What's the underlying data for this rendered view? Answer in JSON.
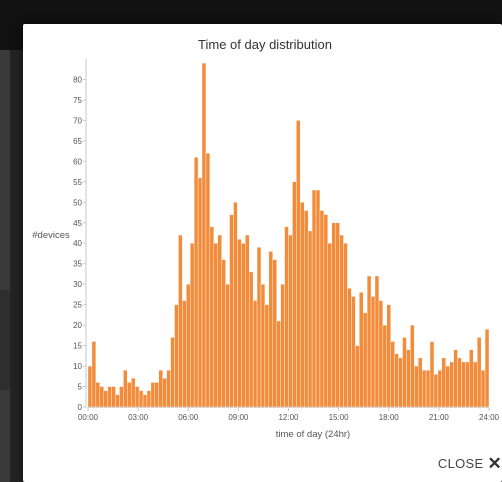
{
  "modal": {
    "close_label": "CLOSE"
  },
  "colors": {
    "bar": "#f28b3a",
    "bar_stroke": "#ffffff",
    "axis": "#c9c9c9",
    "text": "#555555"
  },
  "chart_data": {
    "type": "bar",
    "title": "Time of day distribution",
    "xlabel": "time of day (24hr)",
    "ylabel": "#devices",
    "ylim": [
      0,
      85
    ],
    "yticks": [
      0,
      5,
      10,
      15,
      20,
      25,
      30,
      35,
      40,
      45,
      50,
      55,
      60,
      65,
      70,
      75,
      80
    ],
    "xticks": [
      "00:00",
      "03:00",
      "06:00",
      "09:00",
      "12:00",
      "15:00",
      "18:00",
      "21:00",
      "24:00"
    ],
    "grid": false,
    "values": [
      10,
      16,
      6,
      5,
      4,
      5,
      5,
      3,
      5,
      9,
      6,
      7,
      5,
      4,
      3,
      4,
      6,
      6,
      9,
      7,
      9,
      17,
      25,
      42,
      26,
      30,
      40,
      61,
      56,
      84,
      62,
      44,
      40,
      42,
      36,
      30,
      47,
      50,
      41,
      40,
      42,
      33,
      26,
      39,
      30,
      25,
      38,
      36,
      21,
      30,
      44,
      42,
      55,
      70,
      50,
      48,
      43,
      53,
      53,
      48,
      47,
      40,
      45,
      45,
      42,
      40,
      29,
      27,
      15,
      28,
      23,
      32,
      27,
      32,
      26,
      20,
      25,
      16,
      13,
      12,
      17,
      14,
      20,
      10,
      12,
      9,
      9,
      16,
      8,
      9,
      12,
      10,
      11,
      14,
      12,
      11,
      11,
      14,
      11,
      17,
      9,
      19
    ]
  }
}
